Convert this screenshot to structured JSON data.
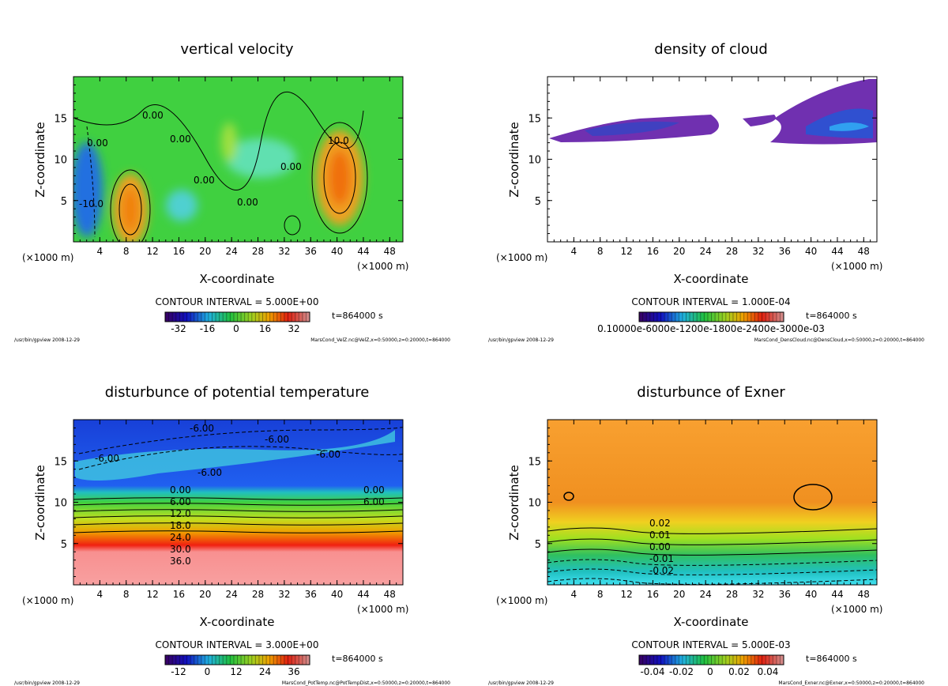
{
  "chart_data": [
    {
      "type": "heatmap",
      "title": "vertical velocity",
      "xlabel": "X-coordinate",
      "ylabel": "Z-coordinate",
      "x_unit": "(×1000 m)",
      "xlim": [
        0,
        50
      ],
      "ylim": [
        0,
        20
      ],
      "xticks": [
        4,
        8,
        12,
        16,
        20,
        24,
        28,
        32,
        36,
        40,
        44,
        48
      ],
      "yticks": [
        5,
        10,
        15
      ],
      "contour_interval": "CONTOUR INTERVAL = 5.000E+00",
      "time": "t=864000 s",
      "colorbar_ticks": [
        "-32",
        "-16",
        "0",
        "16",
        "32"
      ],
      "contour_labels": [
        "0.00",
        "0.00",
        "0.00",
        "0.00",
        "0.00",
        "10.0",
        "0.00",
        "-10.0"
      ],
      "footer_left": "/usr/bin/gpview  2008-12-29",
      "footer_right": "MarsCond_VelZ.nc@VelZ,x=0:50000,z=0:20000,t=864000"
    },
    {
      "type": "heatmap",
      "title": "density of cloud",
      "xlabel": "X-coordinate",
      "ylabel": "Z-coordinate",
      "x_unit": "(×1000 m)",
      "xlim": [
        0,
        50
      ],
      "ylim": [
        0,
        20
      ],
      "xticks": [
        4,
        8,
        12,
        16,
        20,
        24,
        28,
        32,
        36,
        40,
        44,
        48
      ],
      "yticks": [
        5,
        10,
        15
      ],
      "contour_interval": "CONTOUR INTERVAL = 1.000E-04",
      "time": "t=864000 s",
      "colorbar_ticks": [
        "0.10000e-6000e-1200e-1800e-2400e-3000e-03"
      ],
      "contour_labels": [],
      "footer_left": "/usr/bin/gpview  2008-12-29",
      "footer_right": "MarsCond_DensCloud.nc@DensCloud,x=0:50000,z=0:20000,t=864000"
    },
    {
      "type": "heatmap",
      "title": "disturbunce of potential temperature",
      "xlabel": "X-coordinate",
      "ylabel": "Z-coordinate",
      "x_unit": "(×1000 m)",
      "xlim": [
        0,
        50
      ],
      "ylim": [
        0,
        20
      ],
      "xticks": [
        4,
        8,
        12,
        16,
        20,
        24,
        28,
        32,
        36,
        40,
        44,
        48
      ],
      "yticks": [
        5,
        10,
        15
      ],
      "contour_interval": "CONTOUR INTERVAL = 3.000E+00",
      "time": "t=864000 s",
      "colorbar_ticks": [
        "-12",
        "0",
        "12",
        "24",
        "36"
      ],
      "contour_labels": [
        "-6.00",
        "-6.00",
        "-6.00",
        "-6.00",
        "-6.00",
        "0.00",
        "6.00",
        "12.0",
        "18.0",
        "24.0",
        "30.0",
        "36.0",
        "0.00",
        "6.00"
      ],
      "footer_left": "/usr/bin/gpview  2008-12-29",
      "footer_right": "MarsCond_PotTemp.nc@PotTempDist,x=0:50000,z=0:20000,t=864000"
    },
    {
      "type": "heatmap",
      "title": "disturbunce of Exner",
      "xlabel": "X-coordinate",
      "ylabel": "Z-coordinate",
      "x_unit": "(×1000 m)",
      "xlim": [
        0,
        50
      ],
      "ylim": [
        0,
        20
      ],
      "xticks": [
        4,
        8,
        12,
        16,
        20,
        24,
        28,
        32,
        36,
        40,
        44,
        48
      ],
      "yticks": [
        5,
        10,
        15
      ],
      "contour_interval": "CONTOUR INTERVAL = 5.000E-03",
      "time": "t=864000 s",
      "colorbar_ticks": [
        "-0.04",
        "-0.02",
        "0",
        "0.02",
        "0.04"
      ],
      "contour_labels": [
        "0.02",
        "0.01",
        "0.00",
        "-0.01",
        "-0.02"
      ],
      "footer_left": "/usr/bin/gpview  2008-12-29",
      "footer_right": "MarsCond_Exner.nc@Exner,x=0:50000,z=0:20000,t=864000"
    }
  ]
}
